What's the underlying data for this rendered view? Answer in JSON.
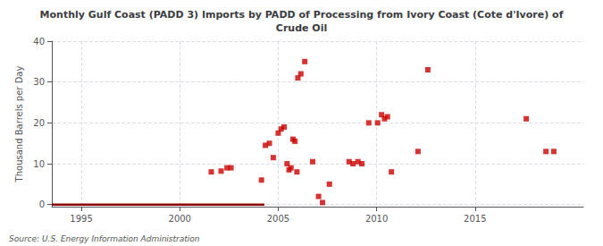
{
  "chart_data": {
    "type": "scatter",
    "title": "Monthly Gulf Coast (PADD 3) Imports by PADD of Processing from Ivory Coast (Cote d'Ivore) of\nCrude Oil",
    "ylabel": "Thousand Barrels per Day",
    "annotation": "Source: U.S. Energy Information Administration",
    "xlim": [
      1993.5,
      2020.5
    ],
    "ylim": [
      -0.5,
      40
    ],
    "xticks": [
      1995,
      2000,
      2005,
      2010,
      2015
    ],
    "yticks": [
      0,
      10,
      20,
      30,
      40
    ],
    "grid": true,
    "series": [
      {
        "type": "line",
        "color": "#8b0000",
        "line_style": "solid",
        "x": [
          1993.5,
          2004.3
        ],
        "values": [
          0,
          0
        ]
      },
      {
        "type": "scatter",
        "color": "#cc0000",
        "marker": "square",
        "x": [
          2001.6,
          2002.1,
          2002.4,
          2002.6,
          2004.15,
          2004.35,
          2004.55,
          2004.75,
          2005.0,
          2005.15,
          2005.3,
          2005.45,
          2005.55,
          2005.65,
          2005.75,
          2005.85,
          2005.95,
          2006.0,
          2006.15,
          2006.35,
          2006.75,
          2007.05,
          2007.25,
          2007.6,
          2008.6,
          2008.8,
          2009.05,
          2009.25,
          2009.6,
          2010.05,
          2010.25,
          2010.4,
          2010.55,
          2010.75,
          2012.1,
          2012.6,
          2017.6,
          2018.6,
          2019.0
        ],
        "values": [
          8.0,
          8.2,
          9.0,
          9.0,
          6.0,
          14.5,
          15.0,
          11.5,
          17.5,
          18.5,
          19.0,
          10.0,
          8.5,
          9.0,
          16.0,
          15.5,
          8.0,
          31.0,
          32.0,
          35.0,
          10.5,
          2.0,
          0.5,
          5.0,
          10.5,
          10.0,
          10.5,
          10.0,
          20.0,
          20.0,
          22.0,
          21.0,
          21.5,
          8.0,
          13.0,
          33.0,
          21.0,
          13.0,
          13.0
        ]
      }
    ]
  }
}
